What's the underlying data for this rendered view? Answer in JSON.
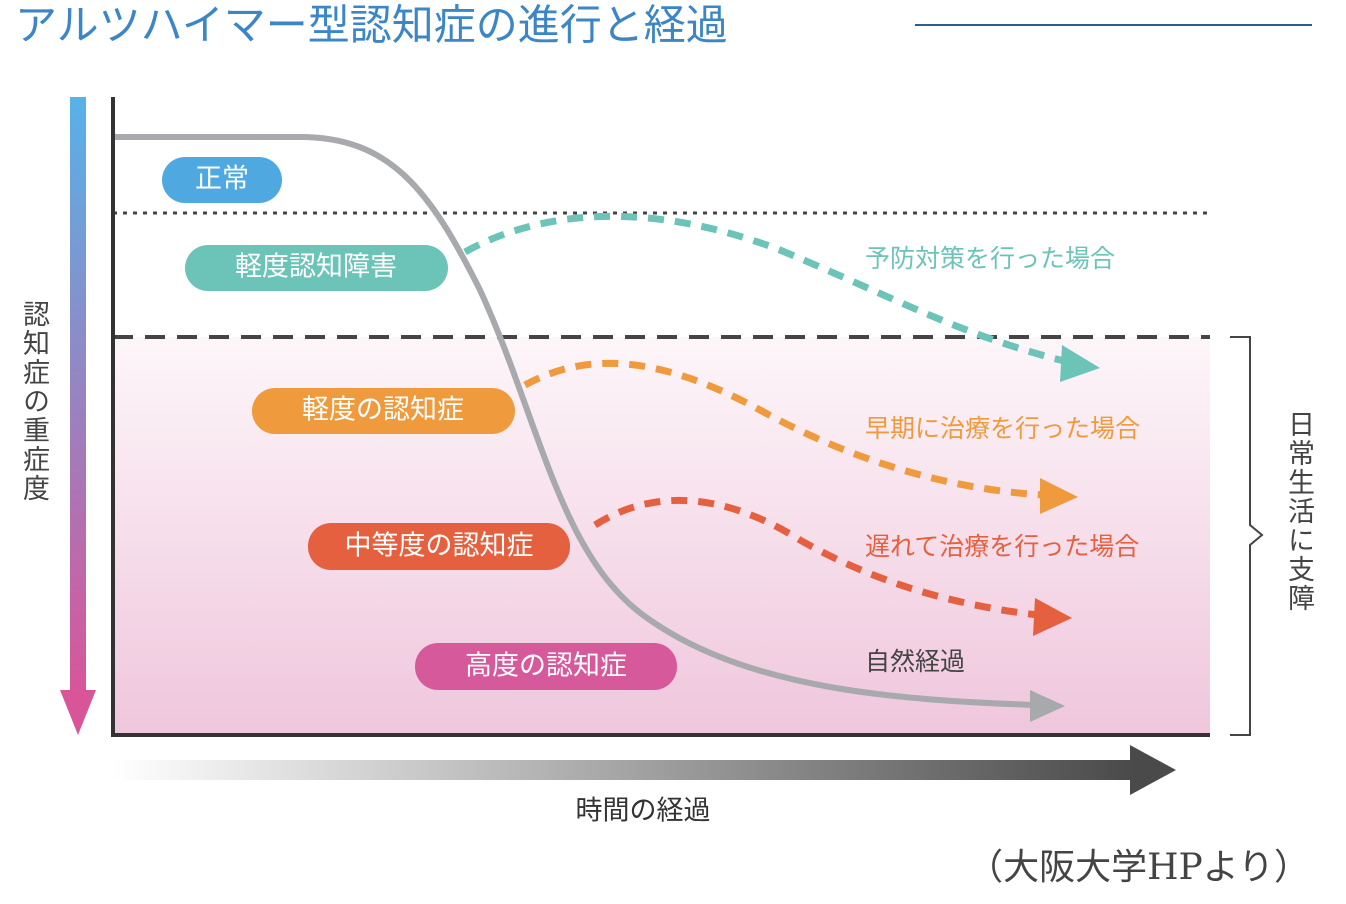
{
  "title": "アルツハイマー型認知症の進行と経過",
  "stages": [
    "正常",
    "軽度認知障害",
    "軽度の認知症",
    "中等度の認知症",
    "高度の認知症"
  ],
  "paths": [
    "予防対策を行った場合",
    "早期に治療を行った場合",
    "遅れて治療を行った場合",
    "自然経過"
  ],
  "axis": {
    "y": "認知症の重症度",
    "x": "時間の経過"
  },
  "bracket_label": "日常生活に支障",
  "source": "（大阪大学HPより）"
}
